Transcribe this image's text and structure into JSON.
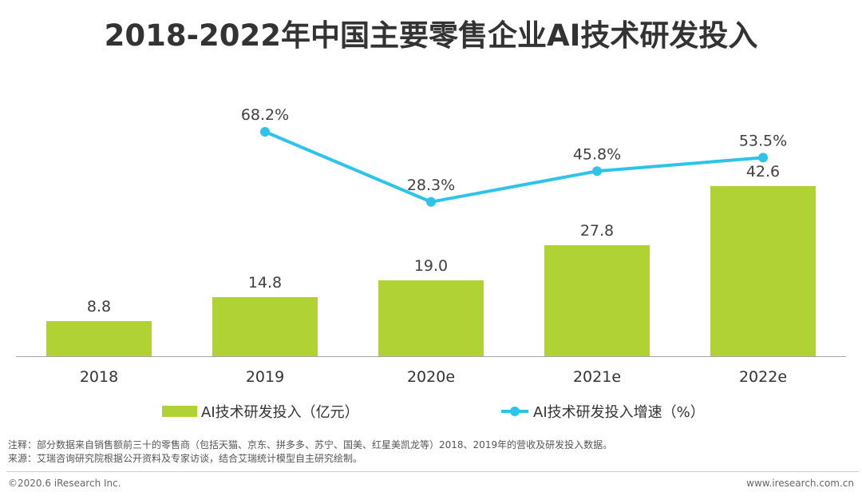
{
  "chart_data": {
    "type": "bar+line",
    "title": "2018-2022年中国主要零售企业AI技术研发投入",
    "categories": [
      "2018",
      "2019",
      "2020e",
      "2021e",
      "2022e"
    ],
    "series": [
      {
        "name": "AI技术研发投入（亿元）",
        "kind": "bar",
        "color": "#b0d235",
        "values": [
          8.8,
          14.8,
          19.0,
          27.8,
          42.6
        ],
        "labels": [
          "8.8",
          "14.8",
          "19.0",
          "27.8",
          "42.6"
        ]
      },
      {
        "name": "AI技术研发投入增速（%）",
        "kind": "line",
        "color": "#2ec4ea",
        "values": [
          null,
          68.2,
          28.3,
          45.8,
          53.5
        ],
        "labels": [
          "",
          "68.2%",
          "28.3%",
          "45.8%",
          "53.5%"
        ]
      }
    ],
    "bar_axis_range": [
      0,
      50
    ],
    "line_axis_range": [
      -20,
      80
    ],
    "legend": "bottom"
  },
  "notes": {
    "note": "注释：部分数据来自销售额前三十的零售商（包括天猫、京东、拼多多、苏宁、国美、红星美凯龙等）2018、2019年的营收及研发投入数据。",
    "source": "来源：艾瑞咨询研究院根据公开资料及专家访谈，结合艾瑞统计模型自主研究绘制。"
  },
  "footer": {
    "copyright": "©2020.6 iResearch Inc.",
    "website": "www.iresearch.com.cn"
  }
}
